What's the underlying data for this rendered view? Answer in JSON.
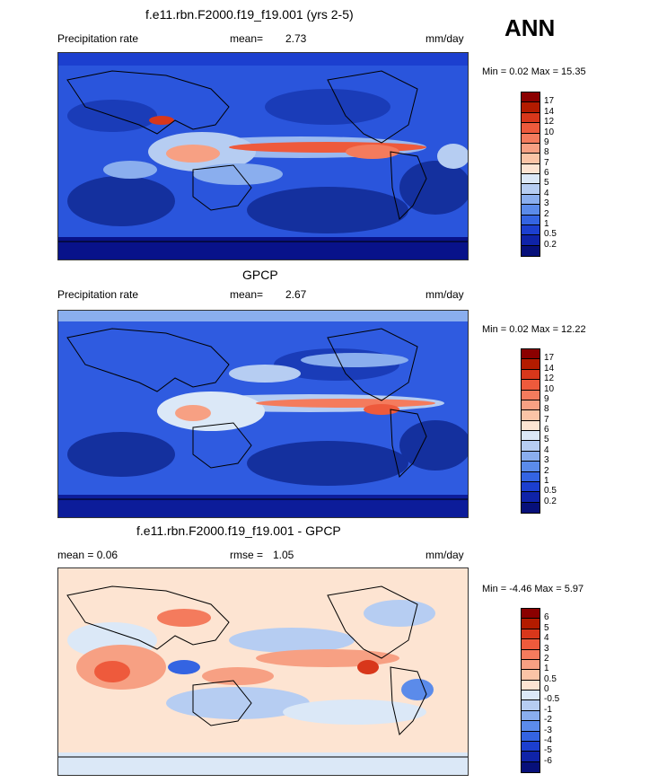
{
  "header": {
    "season": "ANN"
  },
  "panels": [
    {
      "title": "f.e11.rbn.F2000.f19_f19.001 (yrs 2-5)",
      "left_label": "Precipitation rate",
      "stat_label": "mean=",
      "stat_value": "2.73",
      "units": "mm/day",
      "minmax": "Min =   0.02 Max =  15.35",
      "colorbar": {
        "ticks": [
          "17",
          "14",
          "12",
          "10",
          "9",
          "8",
          "7",
          "6",
          "5",
          "4",
          "3",
          "2",
          "1",
          "0.5",
          "0.2"
        ],
        "colors": [
          "#8b0000",
          "#b31b00",
          "#d8371b",
          "#ee5a3c",
          "#f47b5d",
          "#f7a083",
          "#fbc4a6",
          "#fde4d2",
          "#dbe8f7",
          "#b6cdf2",
          "#8aaeee",
          "#5b8bea",
          "#3464e2",
          "#1c3fcf",
          "#0f23a8",
          "#07107a"
        ]
      }
    },
    {
      "title": "GPCP",
      "left_label": "Precipitation rate",
      "stat_label": "mean=",
      "stat_value": "2.67",
      "units": "mm/day",
      "minmax": "Min =   0.02 Max =  12.22",
      "colorbar": {
        "ticks": [
          "17",
          "14",
          "12",
          "10",
          "9",
          "8",
          "7",
          "6",
          "5",
          "4",
          "3",
          "2",
          "1",
          "0.5",
          "0.2"
        ],
        "colors": [
          "#8b0000",
          "#b31b00",
          "#d8371b",
          "#ee5a3c",
          "#f47b5d",
          "#f7a083",
          "#fbc4a6",
          "#fde4d2",
          "#dbe8f7",
          "#b6cdf2",
          "#8aaeee",
          "#5b8bea",
          "#3464e2",
          "#1c3fcf",
          "#0f23a8",
          "#07107a"
        ]
      }
    },
    {
      "title": "f.e11.rbn.F2000.f19_f19.001 - GPCP",
      "left_label": "mean =   0.06",
      "stat_label": "rmse =",
      "stat_value": "1.05",
      "units": "mm/day",
      "minmax": "Min =  -4.46 Max =   5.97",
      "colorbar": {
        "ticks": [
          "6",
          "5",
          "4",
          "3",
          "2",
          "1",
          "0.5",
          "0",
          "-0.5",
          "-1",
          "-2",
          "-3",
          "-4",
          "-5",
          "-6"
        ],
        "colors": [
          "#8b0000",
          "#b31b00",
          "#d8371b",
          "#ee5a3c",
          "#f47b5d",
          "#f7a083",
          "#fbc4a6",
          "#fde4d2",
          "#dbe8f7",
          "#b6cdf2",
          "#8aaeee",
          "#5b8bea",
          "#3464e2",
          "#1c3fcf",
          "#0f23a8",
          "#07107a"
        ]
      }
    }
  ],
  "chart_data": [
    {
      "type": "heatmap",
      "title": "f.e11.rbn.F2000.f19_f19.001 (yrs 2-5)",
      "variable": "Precipitation rate",
      "units": "mm/day",
      "mean": 2.73,
      "min": 0.02,
      "max": 15.35,
      "colorbar_levels": [
        0.2,
        0.5,
        1,
        2,
        3,
        4,
        5,
        6,
        7,
        8,
        9,
        10,
        12,
        14,
        17
      ],
      "projection": "cylindrical equidistant, 0-360 longitude, Pacific-centered"
    },
    {
      "type": "heatmap",
      "title": "GPCP",
      "variable": "Precipitation rate",
      "units": "mm/day",
      "mean": 2.67,
      "min": 0.02,
      "max": 12.22,
      "colorbar_levels": [
        0.2,
        0.5,
        1,
        2,
        3,
        4,
        5,
        6,
        7,
        8,
        9,
        10,
        12,
        14,
        17
      ]
    },
    {
      "type": "heatmap",
      "title": "f.e11.rbn.F2000.f19_f19.001 - GPCP",
      "units": "mm/day",
      "mean": 0.06,
      "rmse": 1.05,
      "min": -4.46,
      "max": 5.97,
      "colorbar_levels": [
        -6,
        -5,
        -4,
        -3,
        -2,
        -1,
        -0.5,
        0,
        0.5,
        1,
        2,
        3,
        4,
        5,
        6
      ]
    }
  ]
}
